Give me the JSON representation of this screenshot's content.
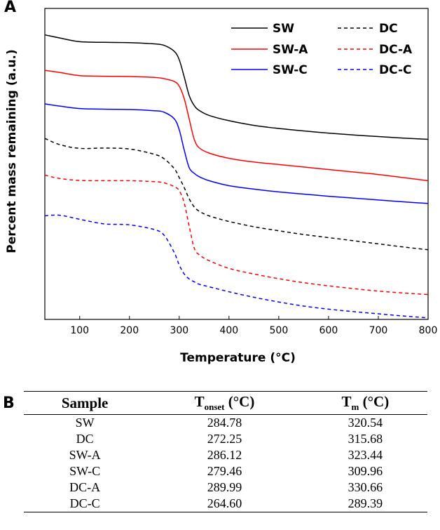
{
  "panel_a_label": "A",
  "panel_b_label": "B",
  "chart_data": {
    "type": "line",
    "title": "",
    "xlabel": "Temperature (°C)",
    "ylabel": "Percent mass remaining (a.u.)",
    "xlim": [
      30,
      800
    ],
    "ylim": [
      0,
      100
    ],
    "xticks": [
      100,
      200,
      300,
      400,
      500,
      600,
      700,
      800
    ],
    "y_tick_labels": "none",
    "legend_position": "top-right",
    "x": [
      30,
      60,
      100,
      150,
      200,
      250,
      270,
      290,
      300,
      310,
      320,
      330,
      340,
      360,
      400,
      450,
      500,
      550,
      600,
      650,
      700,
      750,
      800
    ],
    "series": [
      {
        "name": "SW",
        "style": "solid",
        "color": "#000000",
        "values": [
          91.5,
          90.5,
          89.3,
          89.1,
          89.0,
          88.6,
          88.1,
          86.2,
          83.5,
          78.0,
          72.0,
          68.8,
          67.2,
          65.6,
          63.9,
          62.4,
          61.4,
          60.6,
          59.9,
          59.3,
          58.8,
          58.3,
          57.9
        ]
      },
      {
        "name": "SW-A",
        "style": "solid",
        "color": "#ff0000",
        "values": [
          80.1,
          79.4,
          78.4,
          78.2,
          78.1,
          77.8,
          77.4,
          76.5,
          75.0,
          71.0,
          64.5,
          58.0,
          55.2,
          53.5,
          51.8,
          50.6,
          49.8,
          49.0,
          48.2,
          47.4,
          46.6,
          45.6,
          44.6
        ]
      },
      {
        "name": "SW-C",
        "style": "solid",
        "color": "#0000ff",
        "values": [
          69.3,
          68.6,
          67.8,
          67.6,
          67.5,
          67.1,
          66.6,
          64.5,
          61.0,
          54.5,
          48.8,
          47.0,
          45.9,
          44.6,
          43.0,
          41.9,
          41.0,
          40.3,
          39.6,
          39.0,
          38.4,
          37.8,
          37.3
        ]
      },
      {
        "name": "DC",
        "style": "dashed",
        "color": "#000000",
        "values": [
          58.2,
          56.2,
          55.0,
          55.1,
          54.8,
          53.1,
          51.6,
          48.5,
          45.6,
          42.4,
          38.8,
          36.2,
          34.8,
          33.3,
          31.5,
          29.8,
          28.5,
          27.3,
          26.3,
          25.3,
          24.3,
          23.3,
          22.4
        ]
      },
      {
        "name": "DC-A",
        "style": "dashed",
        "color": "#ff0000",
        "values": [
          46.4,
          45.3,
          44.7,
          44.6,
          44.6,
          44.3,
          43.9,
          42.7,
          41.4,
          37.5,
          30.0,
          23.0,
          20.8,
          18.9,
          16.4,
          14.6,
          13.1,
          11.8,
          10.8,
          9.9,
          9.1,
          8.5,
          8.0
        ]
      },
      {
        "name": "DC-C",
        "style": "dashed",
        "color": "#0000ff",
        "values": [
          33.3,
          33.5,
          32.2,
          30.7,
          30.4,
          28.9,
          27.0,
          21.5,
          17.5,
          14.6,
          13.0,
          12.1,
          11.3,
          10.5,
          8.9,
          7.1,
          5.6,
          4.3,
          3.3,
          2.5,
          1.8,
          1.1,
          0.5
        ]
      }
    ]
  },
  "table": {
    "headers": {
      "sample": "Sample",
      "t_prefix": "T",
      "onset_sub": "onset",
      "m_sub": "m",
      "unit": " (°C)"
    },
    "rows": [
      {
        "sample": "SW",
        "t_onset": "284.78",
        "t_m": "320.54"
      },
      {
        "sample": "DC",
        "t_onset": "272.25",
        "t_m": "315.68"
      },
      {
        "sample": "SW-A",
        "t_onset": "286.12",
        "t_m": "323.44"
      },
      {
        "sample": "SW-C",
        "t_onset": "279.46",
        "t_m": "309.96"
      },
      {
        "sample": "DC-A",
        "t_onset": "289.99",
        "t_m": "330.66"
      },
      {
        "sample": "DC-C",
        "t_onset": "264.60",
        "t_m": "289.39"
      }
    ]
  }
}
